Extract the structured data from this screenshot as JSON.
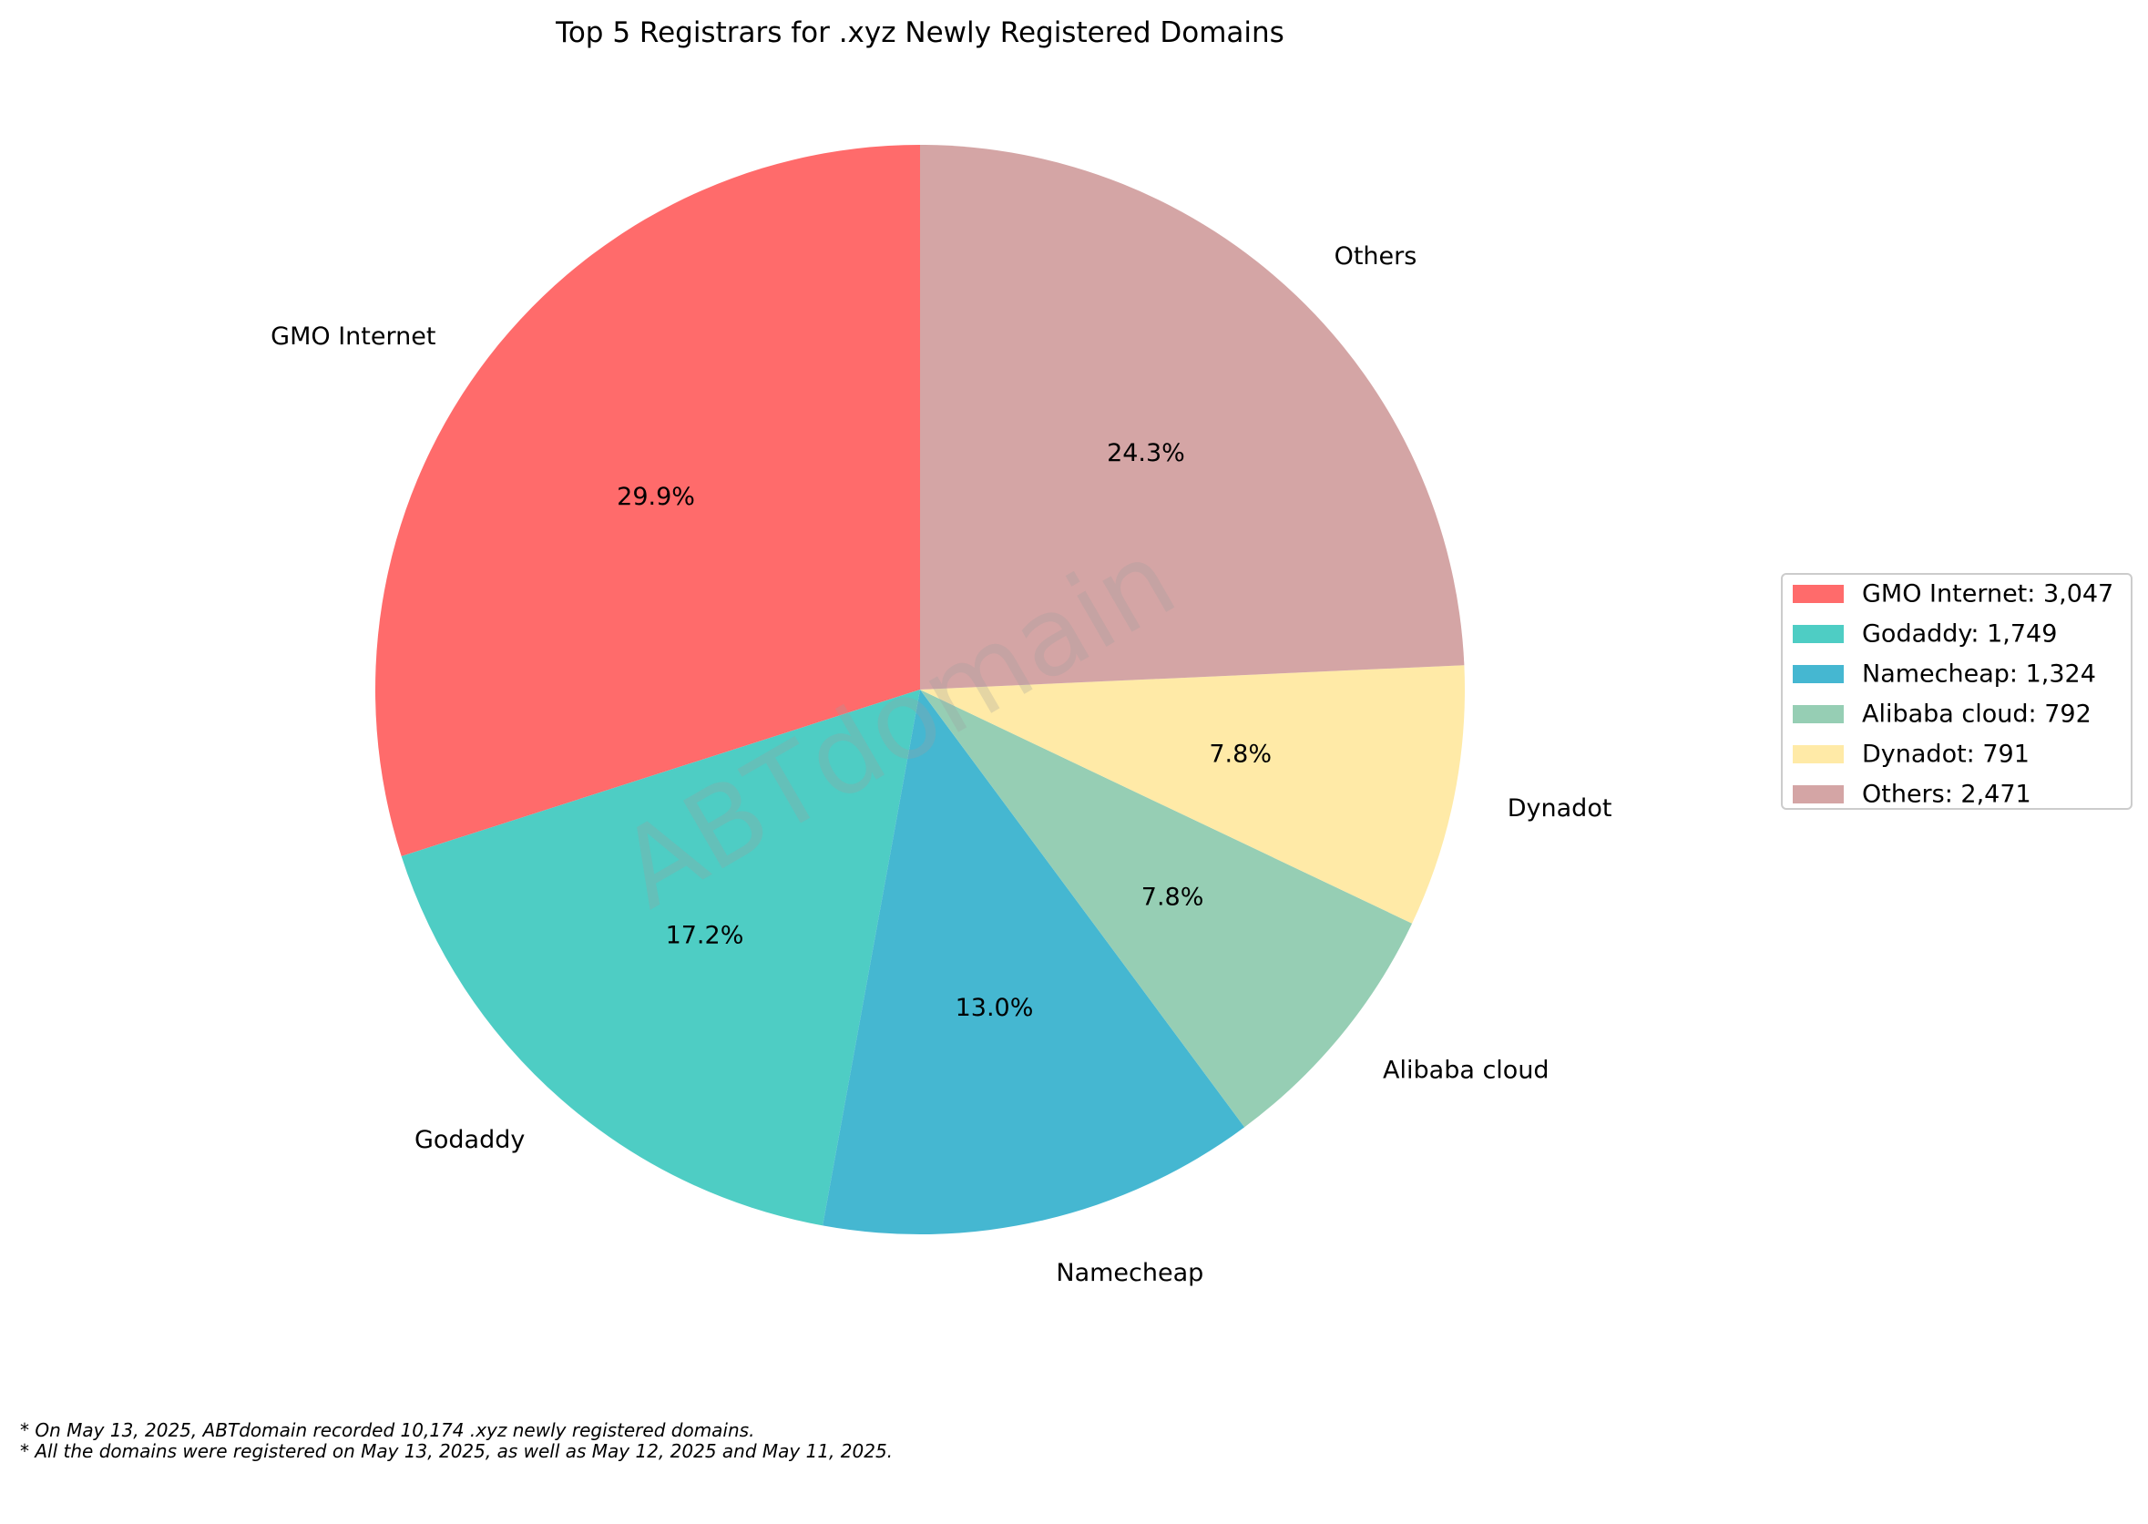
{
  "chart_data": {
    "type": "pie",
    "title": "Top 5 Registrars for .xyz Newly Registered Domains",
    "start_angle_deg": 90,
    "direction": "counterclockwise",
    "slices": [
      {
        "label": "GMO Internet",
        "value": 3047,
        "pct_label": "29.9%",
        "legend": "GMO Internet: 3,047",
        "color": "#ff6b6b"
      },
      {
        "label": "Godaddy",
        "value": 1749,
        "pct_label": "17.2%",
        "legend": "Godaddy: 1,749",
        "color": "#4ecdc4"
      },
      {
        "label": "Namecheap",
        "value": 1324,
        "pct_label": "13.0%",
        "legend": "Namecheap: 1,324",
        "color": "#45b7d1"
      },
      {
        "label": "Alibaba cloud",
        "value": 792,
        "pct_label": "7.8%",
        "legend": "Alibaba cloud: 792",
        "color": "#96ceb4"
      },
      {
        "label": "Dynadot",
        "value": 791,
        "pct_label": "7.8%",
        "legend": "Dynadot: 791",
        "color": "#ffeaa7"
      },
      {
        "label": "Others",
        "value": 2471,
        "pct_label": "24.3%",
        "legend": "Others: 2,471",
        "color": "#d4a5a5"
      }
    ],
    "legend_position": "right",
    "watermark": "ABTdomain",
    "footnotes": [
      "* On May 13, 2025, ABTdomain recorded 10,174 .xyz newly registered domains.",
      "* All the domains were registered on May 13, 2025, as well as May 12, 2025 and May 11, 2025."
    ]
  }
}
